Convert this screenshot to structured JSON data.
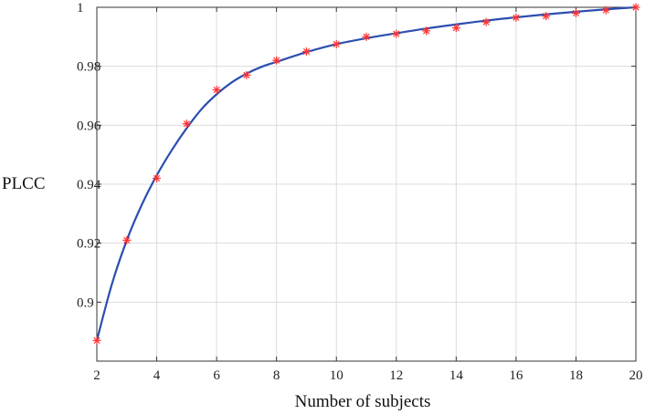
{
  "chart_data": {
    "type": "scatter",
    "title": "",
    "xlabel": "Number of subjects",
    "ylabel": "PLCC",
    "xlim": [
      2,
      20
    ],
    "ylim": [
      0.88,
      1.0
    ],
    "grid": true,
    "xticks": [
      2,
      4,
      6,
      8,
      10,
      12,
      14,
      16,
      18,
      20
    ],
    "yticks": [
      0.9,
      0.92,
      0.94,
      0.96,
      0.98,
      1.0
    ],
    "yticklabels": [
      "0.9",
      "0.92",
      "0.94",
      "0.96",
      "0.98",
      "1"
    ],
    "series": [
      {
        "kind": "markers",
        "marker": "asterisk",
        "color": "#ff3333",
        "x": [
          2,
          3,
          4,
          5,
          6,
          7,
          8,
          9,
          10,
          11,
          12,
          13,
          14,
          15,
          16,
          17,
          18,
          19,
          20
        ],
        "y": [
          0.887,
          0.921,
          0.942,
          0.9605,
          0.972,
          0.977,
          0.982,
          0.985,
          0.9875,
          0.99,
          0.991,
          0.992,
          0.993,
          0.995,
          0.9965,
          0.997,
          0.998,
          0.999,
          1.0
        ]
      },
      {
        "kind": "line",
        "color": "#2b4fb0",
        "x": [
          2,
          2.5,
          3,
          3.5,
          4,
          4.5,
          5,
          5.5,
          6,
          6.5,
          7,
          7.5,
          8,
          9,
          10,
          11,
          12,
          13,
          14,
          15,
          16,
          17,
          18,
          19,
          20
        ],
        "y": [
          0.887,
          0.906,
          0.921,
          0.933,
          0.943,
          0.9515,
          0.959,
          0.9655,
          0.9705,
          0.9745,
          0.9775,
          0.9798,
          0.9815,
          0.9848,
          0.9875,
          0.9895,
          0.9912,
          0.9928,
          0.9942,
          0.9955,
          0.9966,
          0.9976,
          0.9985,
          0.9993,
          1.0
        ]
      }
    ]
  }
}
